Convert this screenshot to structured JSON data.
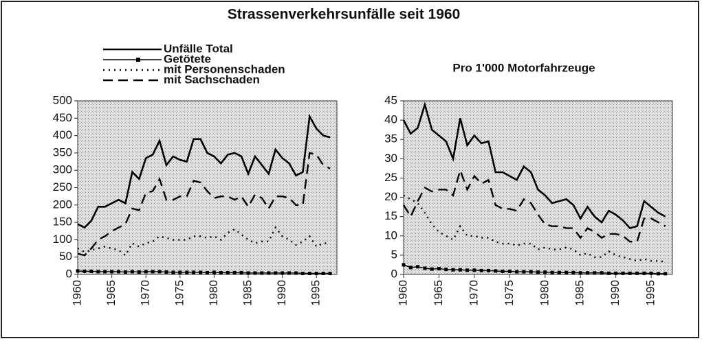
{
  "chart_data": [
    {
      "type": "line",
      "title": "Strassenverkehrsunfälle seit 1960",
      "x": [
        1960,
        1961,
        1962,
        1963,
        1964,
        1965,
        1966,
        1967,
        1968,
        1969,
        1970,
        1971,
        1972,
        1973,
        1974,
        1975,
        1976,
        1977,
        1978,
        1979,
        1980,
        1981,
        1982,
        1983,
        1984,
        1985,
        1986,
        1987,
        1988,
        1989,
        1990,
        1991,
        1992,
        1993,
        1994,
        1995,
        1996,
        1997
      ],
      "xlim": [
        1960,
        1998
      ],
      "xticks": [
        1960,
        1965,
        1970,
        1975,
        1980,
        1985,
        1990,
        1995
      ],
      "ylim": [
        0,
        500
      ],
      "yticks": [
        0,
        50,
        100,
        150,
        200,
        250,
        300,
        350,
        400,
        450,
        500
      ],
      "series": [
        {
          "name": "Unfälle Total",
          "color": "#000000",
          "line_style": "solid",
          "values": [
            145,
            135,
            155,
            195,
            195,
            205,
            215,
            205,
            295,
            275,
            335,
            345,
            385,
            315,
            340,
            330,
            325,
            390,
            390,
            350,
            340,
            320,
            345,
            350,
            340,
            290,
            340,
            315,
            290,
            360,
            335,
            320,
            285,
            295,
            455,
            420,
            400,
            395
          ]
        },
        {
          "name": "Getötete",
          "color": "#000000",
          "line_style": "solid",
          "marker": "square",
          "values": [
            10,
            9,
            9,
            8,
            8,
            8,
            8,
            7,
            8,
            7,
            8,
            8,
            8,
            7,
            6,
            6,
            6,
            6,
            6,
            5,
            6,
            5,
            5,
            5,
            5,
            4,
            4,
            4,
            4,
            4,
            4,
            4,
            4,
            3,
            3,
            3,
            3,
            3
          ]
        },
        {
          "name": "mit Personenschaden",
          "color": "#000000",
          "line_style": "dotted",
          "values": [
            75,
            65,
            70,
            75,
            80,
            75,
            70,
            55,
            90,
            80,
            90,
            95,
            110,
            105,
            100,
            100,
            100,
            110,
            110,
            105,
            110,
            100,
            120,
            130,
            115,
            100,
            90,
            95,
            95,
            135,
            110,
            100,
            85,
            95,
            110,
            80,
            90,
            90
          ]
        },
        {
          "name": "mit Sachschaden",
          "color": "#000000",
          "line_style": "dashed",
          "values": [
            60,
            55,
            75,
            100,
            110,
            125,
            135,
            145,
            190,
            185,
            235,
            240,
            275,
            215,
            215,
            225,
            225,
            270,
            265,
            240,
            220,
            225,
            225,
            215,
            225,
            195,
            230,
            220,
            190,
            225,
            225,
            220,
            200,
            200,
            350,
            345,
            315,
            305
          ]
        }
      ]
    },
    {
      "type": "line",
      "title": "Pro 1'000 Motorfahrzeuge",
      "x": [
        1960,
        1961,
        1962,
        1963,
        1964,
        1965,
        1966,
        1967,
        1968,
        1969,
        1970,
        1971,
        1972,
        1973,
        1974,
        1975,
        1976,
        1977,
        1978,
        1979,
        1980,
        1981,
        1982,
        1983,
        1984,
        1985,
        1986,
        1987,
        1988,
        1989,
        1990,
        1991,
        1992,
        1993,
        1994,
        1995,
        1996,
        1997
      ],
      "xlim": [
        1960,
        1998
      ],
      "xticks": [
        1960,
        1965,
        1970,
        1975,
        1980,
        1985,
        1990,
        1995
      ],
      "ylim": [
        0,
        45
      ],
      "yticks": [
        0,
        5,
        10,
        15,
        20,
        25,
        30,
        35,
        40,
        45
      ],
      "series": [
        {
          "color": "#000000",
          "line_style": "solid",
          "values": [
            40,
            36.5,
            38,
            44,
            37.5,
            36,
            34.5,
            30,
            40.5,
            33.5,
            36,
            34,
            34.5,
            26.5,
            26.5,
            25.5,
            24.5,
            28,
            26.5,
            22,
            20.5,
            18.5,
            19,
            19.5,
            18,
            14.5,
            17.5,
            15,
            13.5,
            16.5,
            15.5,
            14,
            12,
            12.5,
            19,
            17.5,
            16,
            15
          ]
        },
        {
          "color": "#000000",
          "line_style": "solid",
          "marker": "square",
          "values": [
            2.5,
            1.8,
            2,
            1.6,
            1.4,
            1.5,
            1.3,
            1.2,
            1.2,
            1.1,
            1.1,
            1,
            1,
            0.9,
            0.8,
            0.8,
            0.7,
            0.7,
            0.7,
            0.6,
            0.6,
            0.5,
            0.5,
            0.5,
            0.5,
            0.4,
            0.4,
            0.4,
            0.4,
            0.3,
            0.3,
            0.3,
            0.3,
            0.3,
            0.3,
            0.3,
            0.2,
            0.2
          ]
        },
        {
          "color": "#000000",
          "line_style": "dotted",
          "values": [
            20.5,
            19.5,
            18.5,
            16,
            13,
            11,
            10,
            9,
            12.5,
            10,
            10,
            9.5,
            9.5,
            8.5,
            8,
            8,
            7.5,
            8,
            8,
            6.5,
            7,
            6.5,
            6.5,
            7,
            6.5,
            5,
            5.5,
            4.5,
            4.5,
            6,
            5,
            4.5,
            4,
            3.5,
            4,
            3.5,
            3.5,
            3.3
          ]
        },
        {
          "color": "#000000",
          "line_style": "dashed",
          "values": [
            18,
            15,
            19,
            22.5,
            21.5,
            22,
            22,
            20.5,
            27,
            22,
            25.5,
            23.5,
            24.5,
            18,
            17,
            17,
            16.5,
            19.5,
            18.5,
            15.5,
            13,
            12.5,
            12.5,
            12,
            12,
            9.5,
            12,
            11,
            9.5,
            10.5,
            10.5,
            10,
            8.5,
            8.5,
            14.5,
            14.5,
            13.5,
            12.5
          ]
        }
      ]
    }
  ]
}
